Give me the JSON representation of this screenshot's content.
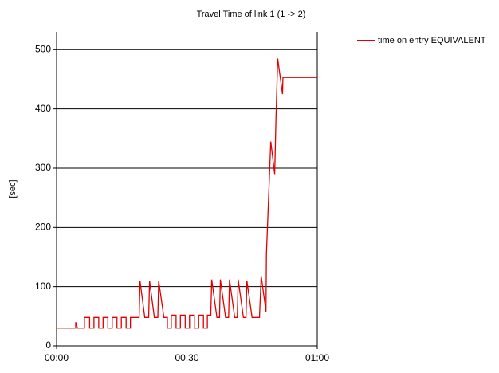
{
  "chart_data": {
    "type": "line",
    "title": "Travel Time of link 1 (1 -> 2)",
    "y_label": "[sec]",
    "xlim": [
      0,
      60
    ],
    "xticks": [
      {
        "value": 0,
        "label": "00:00"
      },
      {
        "value": 30,
        "label": "00:30"
      },
      {
        "value": 60,
        "label": "01:00"
      }
    ],
    "ylim": [
      0,
      530
    ],
    "yticks": [
      0,
      100,
      200,
      300,
      400,
      500
    ],
    "grid": true,
    "legend": "right",
    "x": [
      0,
      4.4,
      4.4,
      4.8,
      6.4,
      6.4,
      7.6,
      7.6,
      8.6,
      8.6,
      9.7,
      9.7,
      10.7,
      10.7,
      11.8,
      11.8,
      12.8,
      12.8,
      13.9,
      13.9,
      14.9,
      14.9,
      16,
      16,
      17,
      17,
      18.3,
      19,
      19.2,
      20.3,
      21.2,
      21.4,
      22.5,
      23.3,
      23.5,
      24.7,
      25.5,
      25.5,
      26.4,
      26.4,
      27.5,
      27.5,
      28.5,
      28.5,
      29.6,
      29.6,
      30.6,
      30.6,
      31.7,
      31.7,
      32.7,
      32.7,
      33.8,
      33.8,
      34.7,
      34.7,
      35.5,
      35.7,
      36.9,
      37.5,
      37.7,
      38.9,
      39.6,
      39.8,
      41,
      41.6,
      41.8,
      43,
      43.6,
      43.8,
      45,
      46.7,
      47.1,
      48.2,
      48.3,
      48.8,
      49.3,
      50.2,
      50.5,
      50.9,
      52,
      52.1,
      60
    ],
    "series": [
      {
        "name": "time on entry EQUIVALENT",
        "color": "#e00000",
        "values": [
          30,
          30,
          40,
          30,
          30,
          48,
          48,
          30,
          30,
          48,
          48,
          30,
          30,
          48,
          48,
          30,
          30,
          48,
          48,
          30,
          30,
          48,
          48,
          30,
          30,
          48,
          48,
          48,
          110,
          48,
          48,
          110,
          48,
          48,
          110,
          48,
          48,
          30,
          30,
          52,
          52,
          30,
          30,
          52,
          52,
          30,
          30,
          52,
          52,
          30,
          30,
          52,
          52,
          30,
          30,
          52,
          52,
          112,
          48,
          48,
          112,
          48,
          48,
          112,
          48,
          48,
          112,
          48,
          48,
          110,
          48,
          48,
          118,
          58,
          155,
          250,
          345,
          290,
          385,
          485,
          425,
          453,
          453
        ]
      }
    ]
  }
}
